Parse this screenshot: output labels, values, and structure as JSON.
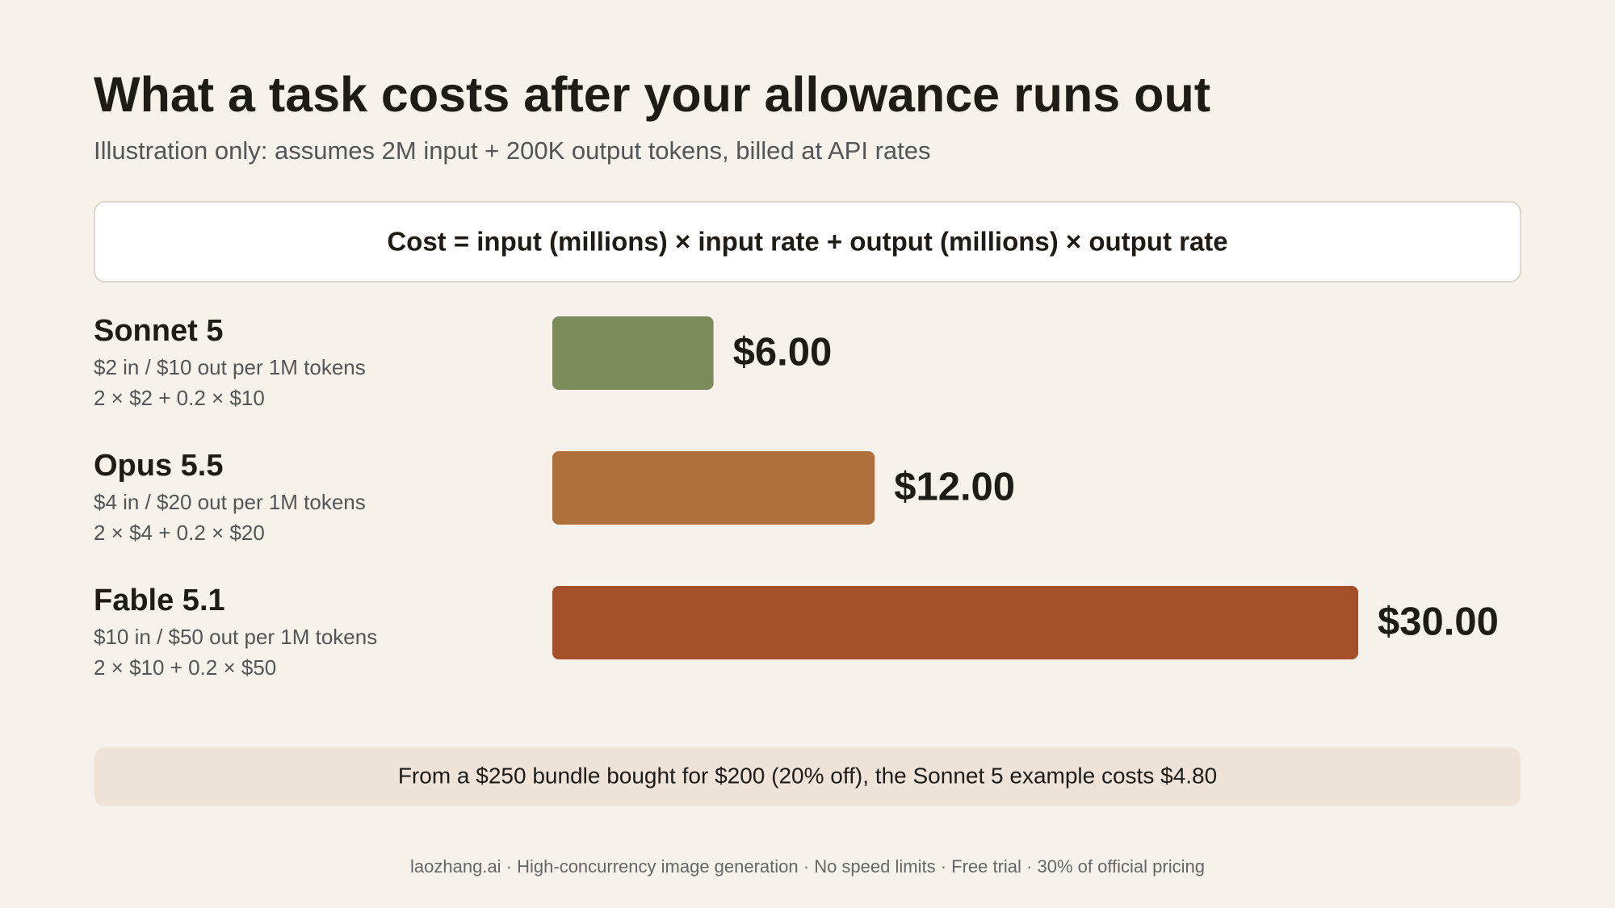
{
  "chart_data": {
    "type": "bar",
    "orientation": "horizontal",
    "title": "What a task costs after your allowance runs out",
    "subtitle": "Illustration only: assumes 2M input + 200K output tokens, billed at API rates",
    "formula": "Cost = input (millions) × input rate + output (millions) × output rate",
    "categories": [
      "Sonnet 5",
      "Opus 5.5",
      "Fable 5.1"
    ],
    "rates": [
      "$2 in / $10 out per 1M tokens",
      "$4 in / $20 out per 1M tokens",
      "$10 in / $50 out per 1M tokens"
    ],
    "calculations": [
      "2 × $2 + 0.2 × $10",
      "2 × $4 + 0.2 × $20",
      "2 × $10 + 0.2 × $50"
    ],
    "values": [
      6,
      12,
      30
    ],
    "value_labels": [
      "$6.00",
      "$12.00",
      "$30.00"
    ],
    "colors": [
      "#7b8c5a",
      "#b0703c",
      "#a44f2a"
    ],
    "note": "From a $250 bundle bought for $200 (20% off), the Sonnet 5 example costs $4.80",
    "footer": "laozhang.ai · High-concurrency image generation · No speed limits · Free trial · 30% of official pricing"
  }
}
